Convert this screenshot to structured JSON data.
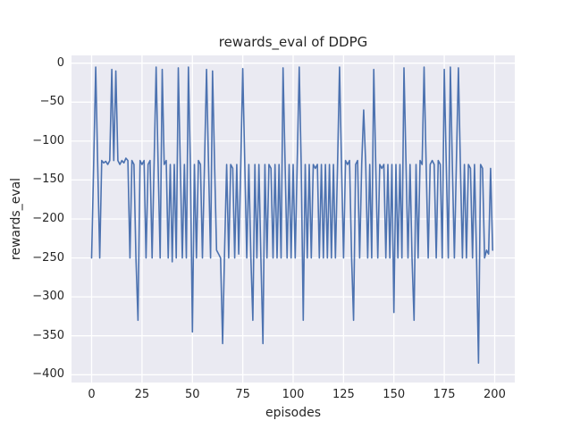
{
  "figure": {
    "title": "rewards_eval of DDPG",
    "xlabel": "episodes",
    "ylabel": "rewards_eval"
  },
  "chart_data": {
    "type": "line",
    "title": "rewards_eval of DDPG",
    "xlabel": "episodes",
    "ylabel": "rewards_eval",
    "x_values_are_indices": true,
    "xlim": [
      -10,
      210
    ],
    "ylim": [
      -410,
      10
    ],
    "xticks": [
      0,
      25,
      50,
      75,
      100,
      125,
      150,
      175,
      200
    ],
    "yticks": [
      0,
      -50,
      -100,
      -150,
      -200,
      -250,
      -300,
      -350,
      -400
    ],
    "grid": true,
    "legend": false,
    "line_color": "#4c72b0",
    "plot_bg": "#eaeaf2",
    "grid_color": "#ffffff",
    "y": [
      -250,
      -130,
      -5,
      -130,
      -250,
      -125,
      -128,
      -126,
      -130,
      -125,
      -8,
      -125,
      -10,
      -125,
      -130,
      -125,
      -128,
      -122,
      -125,
      -250,
      -125,
      -130,
      -250,
      -330,
      -125,
      -130,
      -125,
      -250,
      -130,
      -125,
      -250,
      -130,
      -5,
      -130,
      -250,
      -8,
      -130,
      -125,
      -250,
      -130,
      -255,
      -130,
      -250,
      -6,
      -130,
      -250,
      -130,
      -250,
      -5,
      -130,
      -345,
      -130,
      -250,
      -125,
      -130,
      -250,
      -130,
      -8,
      -130,
      -250,
      -10,
      -130,
      -240,
      -245,
      -250,
      -360,
      -240,
      -130,
      -250,
      -130,
      -135,
      -250,
      -130,
      -245,
      -130,
      -7,
      -130,
      -250,
      -130,
      -250,
      -330,
      -130,
      -250,
      -130,
      -250,
      -360,
      -130,
      -250,
      -130,
      -135,
      -250,
      -130,
      -250,
      -130,
      -250,
      -6,
      -130,
      -250,
      -130,
      -250,
      -130,
      -250,
      -130,
      -5,
      -130,
      -330,
      -130,
      -250,
      -130,
      -250,
      -130,
      -135,
      -130,
      -250,
      -130,
      -250,
      -130,
      -250,
      -130,
      -250,
      -130,
      -250,
      -135,
      -5,
      -130,
      -250,
      -125,
      -130,
      -125,
      -250,
      -330,
      -130,
      -125,
      -250,
      -130,
      -60,
      -130,
      -250,
      -130,
      -250,
      -8,
      -130,
      -250,
      -130,
      -135,
      -130,
      -250,
      -130,
      -250,
      -130,
      -320,
      -130,
      -250,
      -130,
      -250,
      -6,
      -130,
      -250,
      -130,
      -250,
      -330,
      -130,
      -250,
      -125,
      -130,
      -5,
      -130,
      -250,
      -130,
      -125,
      -130,
      -250,
      -125,
      -130,
      -250,
      -8,
      -130,
      -250,
      -5,
      -130,
      -250,
      -130,
      -6,
      -130,
      -250,
      -130,
      -250,
      -130,
      -135,
      -250,
      -130,
      -250,
      -385,
      -130,
      -135,
      -250,
      -240,
      -245,
      -135,
      -240
    ]
  }
}
